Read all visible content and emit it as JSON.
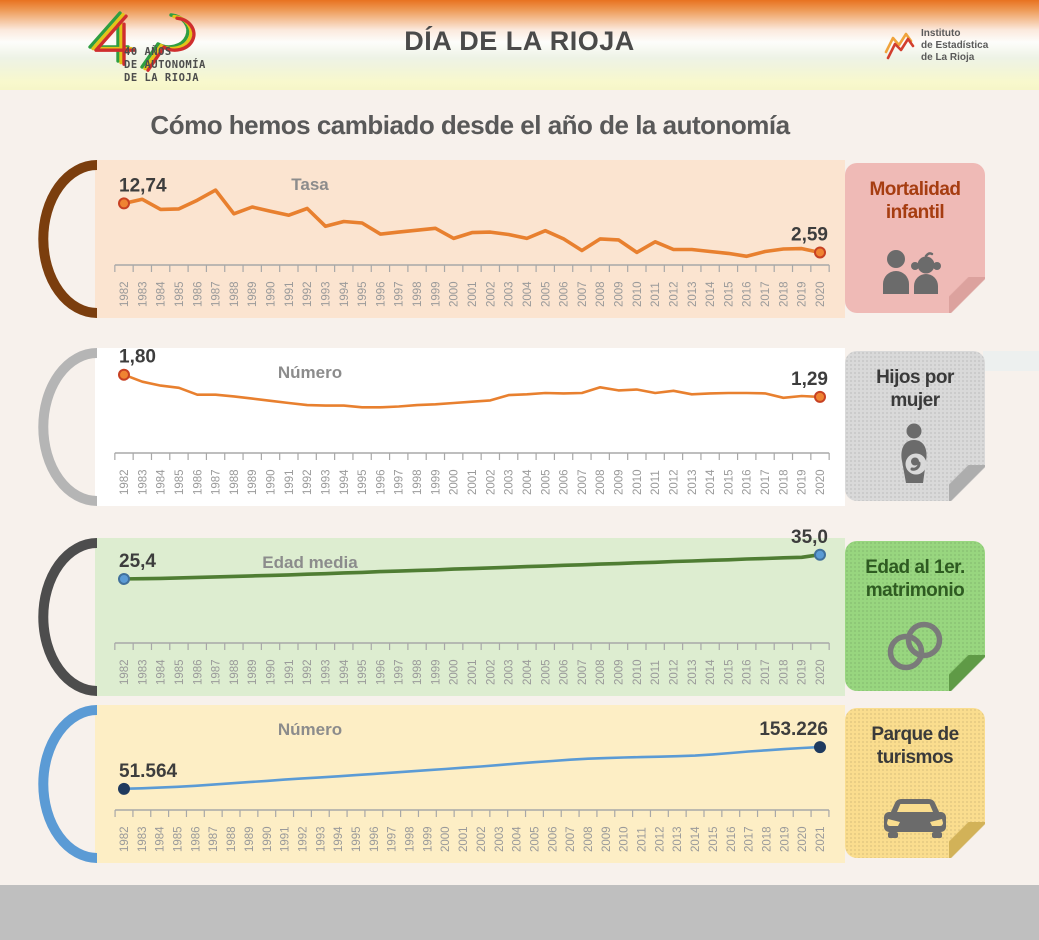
{
  "header": {
    "title": "DÍA DE LA RIOJA",
    "logo40_text": "40 AÑOS\nDE AUTONOMÍA\nDE LA RIOJA",
    "institute_text": "Instituto\nde Estadística\nde La Rioja"
  },
  "heading": "Cómo hemos cambiado desde el año de la autonomía",
  "colors": {
    "page_bg": "#f7f1ec",
    "header_orange": "#e87220",
    "header_yellow": "#f6f6c8",
    "bottom_bar": "#bfbfbf",
    "axis": "#a8a8a8",
    "year_label": "#9a9a9a",
    "unit_label": "#8c8c8c",
    "value_label": "#3d3d3d"
  },
  "chart_data": [
    {
      "type": "line",
      "title": "Mortalidad infantil",
      "unit_label": "Tasa",
      "icon": "children-icon",
      "x": [
        1982,
        1983,
        1984,
        1985,
        1986,
        1987,
        1988,
        1989,
        1990,
        1991,
        1992,
        1993,
        1994,
        1995,
        1996,
        1997,
        1998,
        1999,
        2000,
        2001,
        2002,
        2003,
        2004,
        2005,
        2006,
        2007,
        2008,
        2009,
        2010,
        2011,
        2012,
        2013,
        2014,
        2015,
        2016,
        2017,
        2018,
        2019,
        2020
      ],
      "values": [
        12.74,
        13.6,
        11.5,
        11.6,
        13.4,
        15.5,
        10.6,
        12.0,
        11.1,
        10.3,
        11.7,
        8.0,
        9.0,
        8.7,
        6.4,
        6.8,
        7.2,
        7.6,
        5.5,
        6.7,
        6.8,
        6.3,
        5.5,
        7.1,
        5.4,
        3.0,
        5.4,
        5.2,
        2.6,
        4.8,
        3.2,
        3.2,
        2.8,
        2.4,
        1.8,
        2.8,
        3.3,
        3.4,
        2.59
      ],
      "start_label": "12,74",
      "end_label": "2,59",
      "ylim": [
        0,
        18
      ],
      "line_color": "#e8802f",
      "line_width": 3.6,
      "marker_fill": "#ef8332",
      "marker_stroke": "#c74123",
      "panel_bg": "#fbe4d0",
      "arc_color": "#7b3e0e",
      "label_bg": "#efbab6",
      "label_fold": "#dca29e",
      "label_text_color": "#a63d11",
      "textured": false
    },
    {
      "type": "line",
      "title": "Hijos por mujer",
      "unit_label": "Número",
      "icon": "pregnant-woman-icon",
      "x": [
        1982,
        1983,
        1984,
        1985,
        1986,
        1987,
        1988,
        1989,
        1990,
        1991,
        1992,
        1993,
        1994,
        1995,
        1996,
        1997,
        1998,
        1999,
        2000,
        2001,
        2002,
        2003,
        2004,
        2005,
        2006,
        2007,
        2008,
        2009,
        2010,
        2011,
        2012,
        2013,
        2014,
        2015,
        2016,
        2017,
        2018,
        2019,
        2020
      ],
      "values": [
        1.8,
        1.64,
        1.55,
        1.5,
        1.34,
        1.34,
        1.3,
        1.25,
        1.2,
        1.15,
        1.1,
        1.09,
        1.09,
        1.05,
        1.05,
        1.07,
        1.1,
        1.12,
        1.15,
        1.18,
        1.21,
        1.33,
        1.35,
        1.38,
        1.37,
        1.38,
        1.51,
        1.44,
        1.46,
        1.38,
        1.43,
        1.35,
        1.37,
        1.38,
        1.38,
        1.37,
        1.27,
        1.31,
        1.29
      ],
      "start_label": "1,80",
      "end_label": "1,29",
      "ylim": [
        0,
        2
      ],
      "line_color": "#e8802f",
      "line_width": 2.6,
      "marker_fill": "#ef8332",
      "marker_stroke": "#c74123",
      "panel_bg": "#ffffff",
      "arc_color": "#b5b5b5",
      "label_bg": "#d9d9d9",
      "label_fold": "#adadad",
      "label_text_color": "#3a3a3a",
      "textured": true
    },
    {
      "type": "line",
      "title": "Edad al 1er. matrimonio",
      "unit_label": "Edad media",
      "icon": "wedding-rings-icon",
      "x": [
        1982,
        1983,
        1984,
        1985,
        1986,
        1987,
        1988,
        1989,
        1990,
        1991,
        1992,
        1993,
        1994,
        1995,
        1996,
        1997,
        1998,
        1999,
        2000,
        2001,
        2002,
        2003,
        2004,
        2005,
        2006,
        2007,
        2008,
        2009,
        2010,
        2011,
        2012,
        2013,
        2014,
        2015,
        2016,
        2017,
        2018,
        2019,
        2020
      ],
      "values": [
        25.4,
        25.5,
        25.6,
        25.8,
        26.0,
        26.2,
        26.4,
        26.6,
        26.8,
        27.0,
        27.3,
        27.5,
        27.8,
        28.0,
        28.3,
        28.5,
        28.8,
        29.0,
        29.3,
        29.5,
        29.8,
        30.0,
        30.3,
        30.5,
        30.8,
        31.0,
        31.3,
        31.5,
        31.8,
        32.0,
        32.3,
        32.5,
        32.8,
        33.0,
        33.3,
        33.5,
        33.8,
        34.0,
        35.0
      ],
      "start_label": "25,4",
      "end_label": "35,0",
      "ylim": [
        0,
        34.5
      ],
      "line_color": "#4f7d33",
      "line_width": 3.6,
      "marker_fill": "#5b9bd5",
      "marker_stroke": "#41719c",
      "panel_bg": "#ddedd0",
      "arc_color": "#4d4d4d",
      "label_bg": "#98d67f",
      "label_fold": "#5f9a46",
      "label_text_color": "#2e5b21",
      "textured": true
    },
    {
      "type": "line",
      "title": "Parque de turismos",
      "unit_label": "Número",
      "icon": "car-icon",
      "x": [
        1982,
        1983,
        1984,
        1985,
        1986,
        1987,
        1988,
        1989,
        1990,
        1991,
        1992,
        1993,
        1994,
        1995,
        1996,
        1997,
        1998,
        1999,
        2000,
        2001,
        2002,
        2003,
        2004,
        2005,
        2006,
        2007,
        2008,
        2009,
        2010,
        2011,
        2012,
        2013,
        2014,
        2015,
        2016,
        2017,
        2018,
        2019,
        2020,
        2021
      ],
      "values": [
        51564,
        52800,
        54500,
        56500,
        59000,
        62000,
        65000,
        68000,
        71000,
        74000,
        77000,
        79500,
        82000,
        85000,
        88000,
        91000,
        94000,
        97000,
        100000,
        103000,
        106000,
        109500,
        113000,
        116500,
        119500,
        122500,
        125000,
        126500,
        128000,
        129000,
        130000,
        131000,
        132500,
        135500,
        139000,
        142500,
        145500,
        148500,
        151000,
        153226
      ],
      "start_label": "51.564",
      "end_label": "153.226",
      "ylim": [
        0,
        212000
      ],
      "line_color": "#5b9bd5",
      "line_width": 2.6,
      "marker_fill": "#1f3a5f",
      "marker_stroke": "#1f3a5f",
      "panel_bg": "#fdeec5",
      "arc_color": "#5b9bd5",
      "label_bg": "#fadd8e",
      "label_fold": "#d2b258",
      "label_text_color": "#3a3a3a",
      "textured": true
    }
  ]
}
